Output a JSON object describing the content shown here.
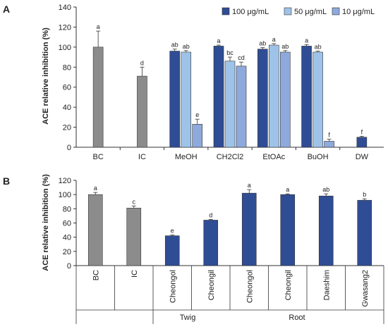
{
  "panel_a": {
    "letter": "A",
    "ylabel": "ACE relative inhibition (%)",
    "yticks": [
      "0",
      "20",
      "40",
      "60",
      "80",
      "100",
      "120",
      "140"
    ],
    "legend": [
      "100 μg/mL",
      "50 μg/mL",
      "10 μg/mL"
    ]
  },
  "panel_b": {
    "letter": "B",
    "ylabel": "ACE relative inhibition (%)",
    "yticks": [
      "0",
      "20",
      "40",
      "60",
      "80",
      "100",
      "120"
    ],
    "groups": [
      "Twig",
      "Root"
    ]
  },
  "colors": {
    "control": "#8c8c8c",
    "dose_100": "#2f4d94",
    "dose_50": "#9fc3e8",
    "dose_10": "#8ea9dc",
    "sample": "#2f4d94",
    "axis": "#333333"
  },
  "chart_data": [
    {
      "type": "bar",
      "categories": [
        "BC",
        "IC",
        "MeOH",
        "CH2Cl2",
        "EtOAc",
        "BuOH",
        "DW"
      ],
      "ylabel": "ACE relative inhibition (%)",
      "ylim": [
        0,
        140
      ],
      "legend_position": "top-right",
      "series": [
        {
          "name": "100 μg/mL",
          "values": [
            null,
            null,
            96,
            101,
            98,
            101,
            10
          ],
          "errors": [
            null,
            null,
            2,
            1,
            1.5,
            1.5,
            1
          ],
          "letters": [
            "",
            "",
            "ab",
            "a",
            "ab",
            "a",
            "f"
          ]
        },
        {
          "name": "50 μg/mL",
          "values": [
            null,
            null,
            95,
            86,
            102,
            95,
            null
          ],
          "errors": [
            null,
            null,
            1.5,
            4,
            1.5,
            1,
            null
          ],
          "letters": [
            "",
            "",
            "ab",
            "bc",
            "a",
            "ab",
            ""
          ]
        },
        {
          "name": "10 μg/mL",
          "values": [
            null,
            null,
            23,
            81,
            95,
            6,
            null
          ],
          "errors": [
            null,
            null,
            5,
            4,
            1.5,
            2,
            null
          ],
          "letters": [
            "",
            "",
            "e",
            "cd",
            "ab",
            "f",
            ""
          ]
        }
      ],
      "controls": {
        "values": [
          100,
          71
        ],
        "errors": [
          16,
          9
        ],
        "letters": [
          "a",
          "d"
        ]
      }
    },
    {
      "type": "bar",
      "categories": [
        "BC",
        "IC",
        "Cheongol",
        "Cheongil",
        "Cheongol",
        "Cheongil",
        "Daeshim",
        "Gwasang2"
      ],
      "values": [
        100,
        81,
        42,
        64,
        102,
        100,
        98,
        92
      ],
      "errors": [
        3,
        3,
        1,
        1,
        5,
        1,
        3,
        2
      ],
      "letters": [
        "a",
        "c",
        "e",
        "d",
        "a",
        "a",
        "ab",
        "b"
      ],
      "groups": [
        {
          "name": "Twig",
          "categories": [
            "Cheongol",
            "Cheongil"
          ]
        },
        {
          "name": "Root",
          "categories": [
            "Cheongol",
            "Cheongil",
            "Daeshim",
            "Gwasang2"
          ]
        }
      ],
      "ylabel": "ACE relative inhibition (%)",
      "ylim": [
        0,
        120
      ]
    }
  ]
}
